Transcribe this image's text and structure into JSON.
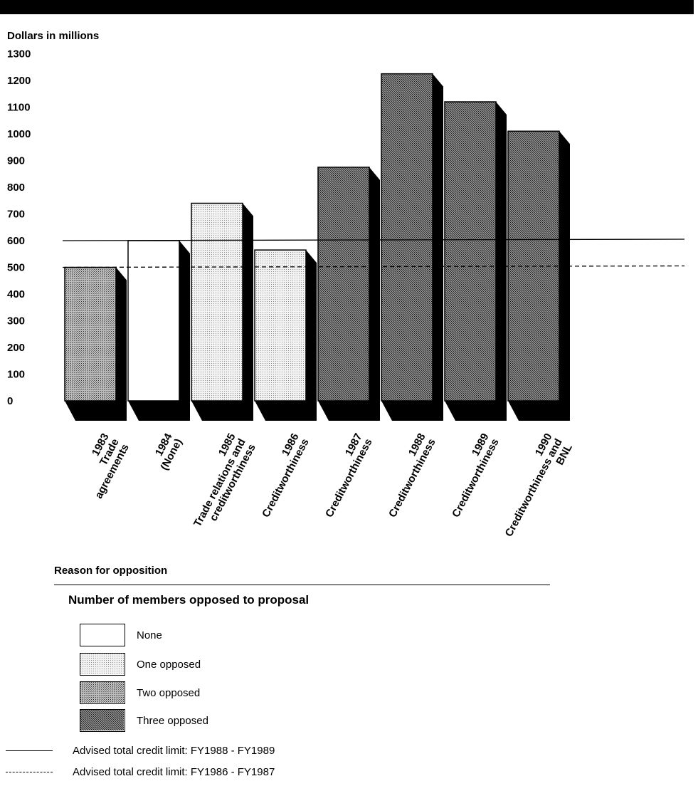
{
  "chart_data": {
    "type": "bar",
    "ylabel": "Dollars in millions",
    "ylim": [
      0,
      1300
    ],
    "yticks": [
      "1300",
      "1200",
      "1100",
      "1000",
      "900",
      "800",
      "700",
      "600",
      "500",
      "400",
      "300",
      "200",
      "100",
      "0"
    ],
    "categories": [
      [
        "1983",
        "Trade",
        "agreements"
      ],
      [
        "1984",
        "(None)"
      ],
      [
        "1985",
        "Trade relations and",
        "creditworthiness"
      ],
      [
        "1986",
        "Creditworthiness"
      ],
      [
        "1987",
        "Creditworthiness"
      ],
      [
        "1988",
        "Creditworthiness"
      ],
      [
        "1989",
        "Creditworthiness"
      ],
      [
        "1990",
        "Creditworthiness and",
        "BNL"
      ]
    ],
    "values": [
      500,
      600,
      740,
      565,
      875,
      1225,
      1120,
      1010
    ],
    "members_opposed": [
      "Two opposed",
      "None",
      "One opposed",
      "One opposed",
      "Three opposed",
      "Three opposed",
      "Three opposed",
      "Three opposed"
    ],
    "reference_lines": [
      {
        "label": "Advised total credit limit: FY1988 - FY1989",
        "value": 600,
        "style": "solid"
      },
      {
        "label": "Advised total credit limit: FY1986 - FY1987",
        "value": 500,
        "style": "dashed"
      }
    ],
    "xlabel": "Reason for opposition",
    "grid": false
  },
  "legend": {
    "title": "Number of members opposed to proposal",
    "items": [
      {
        "label": "None",
        "pattern": "none"
      },
      {
        "label": "One opposed",
        "pattern": "one"
      },
      {
        "label": "Two opposed",
        "pattern": "two"
      },
      {
        "label": "Three opposed",
        "pattern": "three"
      }
    ]
  },
  "line_legend": [
    {
      "label": "Advised total credit limit: FY1988 - FY1989",
      "style": "solid"
    },
    {
      "label": "Advised total credit limit: FY1986 - FY1987",
      "style": "dashed"
    }
  ],
  "colors": {
    "none": "#ffffff",
    "one": "#e6e6e6",
    "two": "#9a9a9a",
    "three": "#5a5a5a",
    "shadow": "#000000"
  }
}
